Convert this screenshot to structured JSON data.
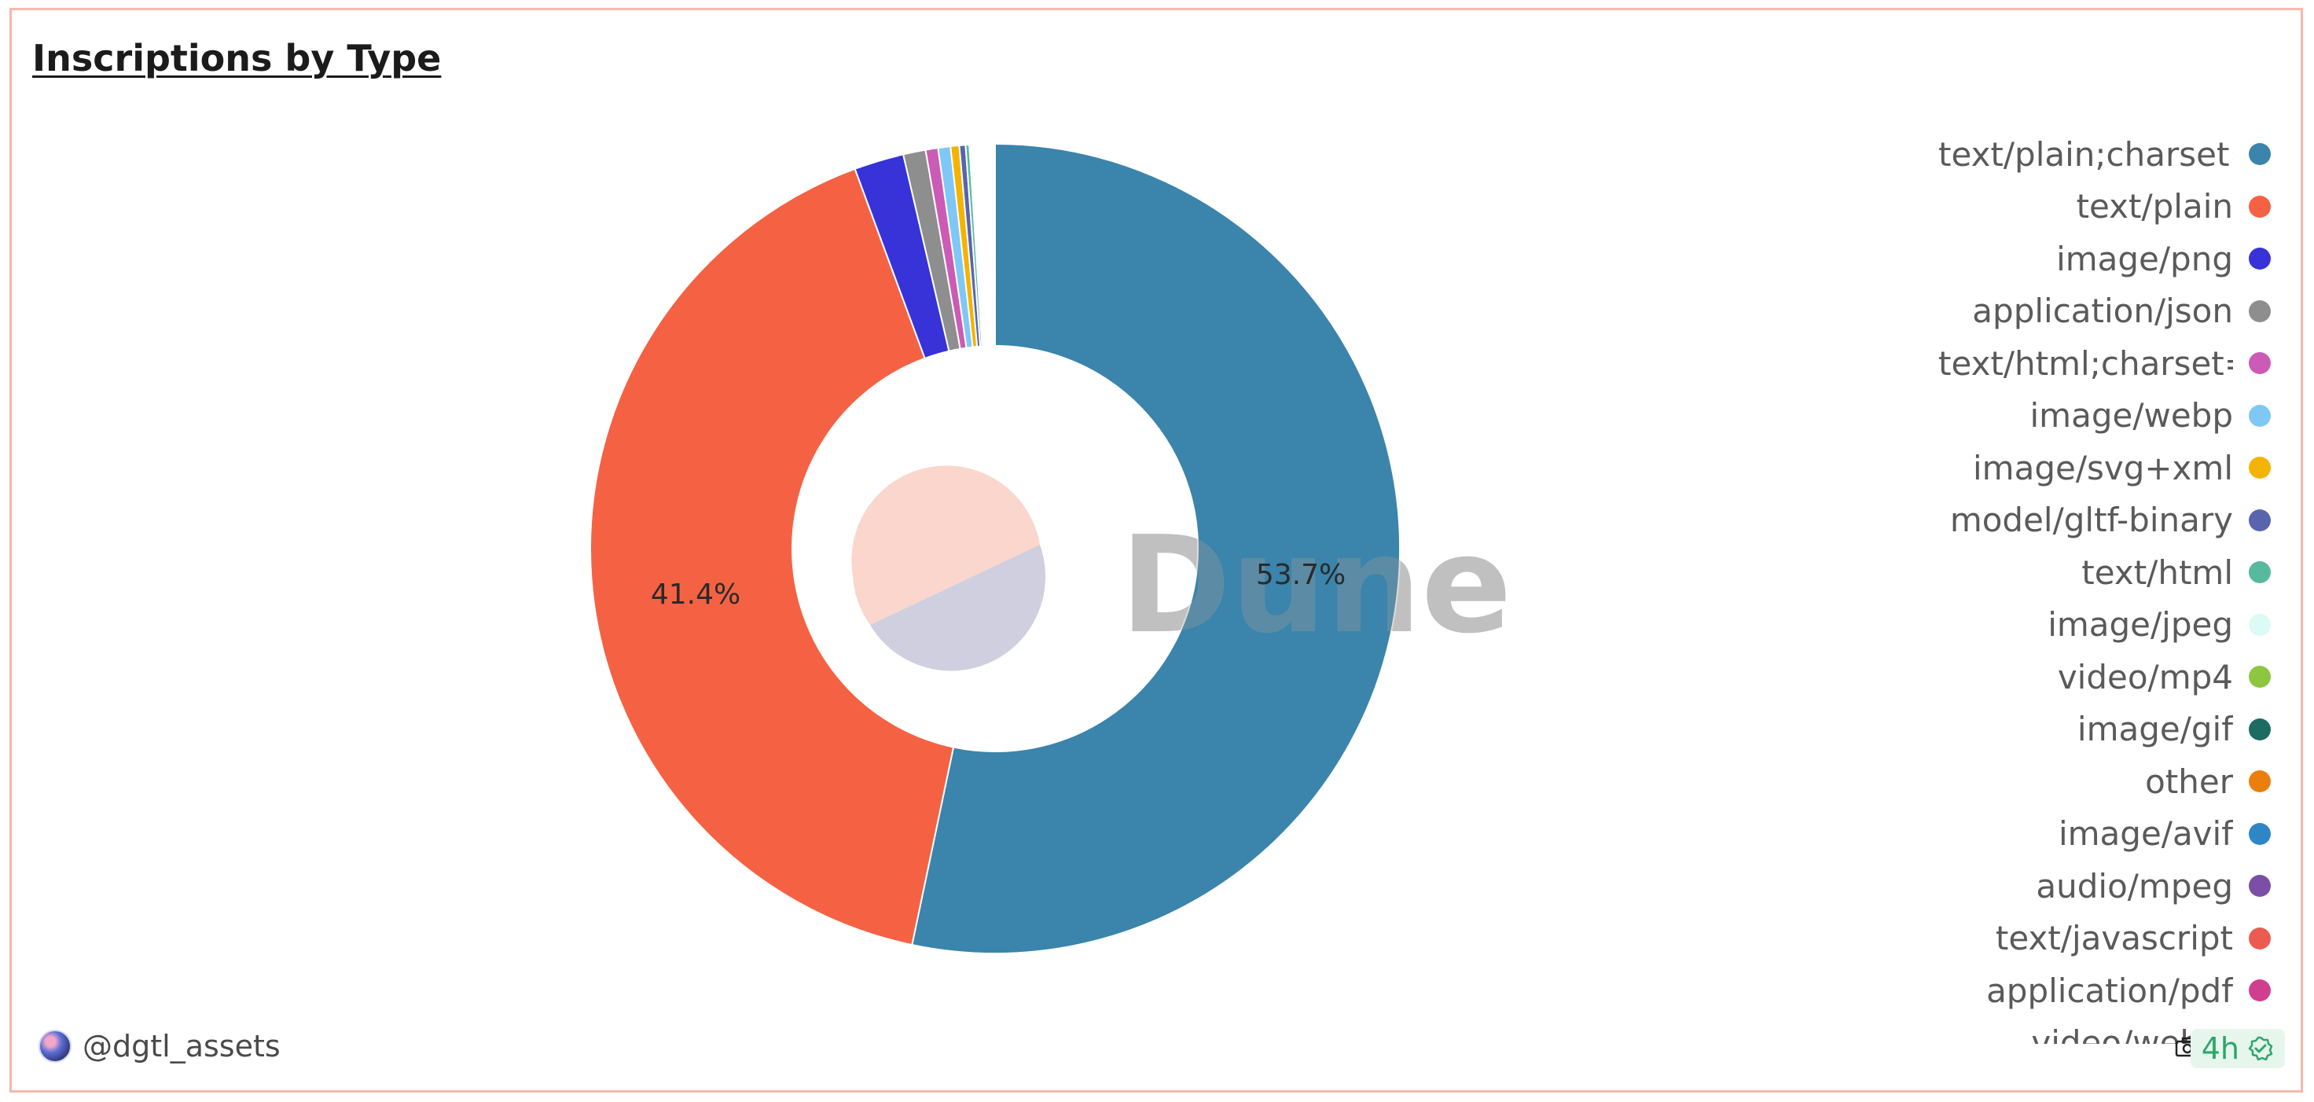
{
  "panel": {
    "title": "Inscriptions by Type",
    "watermark": "Dune",
    "username": "@dgtl_assets",
    "age": "4h",
    "icons": {
      "avatar": "user-avatar",
      "camera": "camera-icon",
      "verified": "check-circle-icon"
    }
  },
  "chart_data": {
    "type": "pie",
    "title": "Inscriptions by Type",
    "donut": true,
    "legend_position": "right",
    "slice_labels": [
      "53.7%",
      "41.4%"
    ],
    "slices": [
      {
        "name": "text/plain;charset=",
        "value": 53.7,
        "color": "#3b84ab"
      },
      {
        "name": "text/plain",
        "value": 41.4,
        "color": "#f46243"
      },
      {
        "name": "image/png",
        "value": 2.0,
        "color": "#3832d9"
      },
      {
        "name": "application/json",
        "value": 0.9,
        "color": "#8e8e8e"
      },
      {
        "name": "text/html;charset=",
        "value": 0.5,
        "color": "#cc5bb6"
      },
      {
        "name": "image/webp",
        "value": 0.5,
        "color": "#7fc8f5"
      },
      {
        "name": "image/svg+xml",
        "value": 0.35,
        "color": "#f5b301"
      },
      {
        "name": "model/gltf-binary",
        "value": 0.25,
        "color": "#5865ad"
      },
      {
        "name": "text/html",
        "value": 0.15,
        "color": "#57b99d"
      },
      {
        "name": "image/jpeg",
        "value": 0.08,
        "color": "#dcfaf6"
      },
      {
        "name": "video/mp4",
        "value": 0.06,
        "color": "#8dc63f"
      },
      {
        "name": "image/gif",
        "value": 0.05,
        "color": "#1d6b63"
      },
      {
        "name": "other",
        "value": 0.03,
        "color": "#ea7f0e"
      },
      {
        "name": "image/avif",
        "value": 0.02,
        "color": "#2f86c6"
      },
      {
        "name": "audio/mpeg",
        "value": 0.02,
        "color": "#7a4fa5"
      },
      {
        "name": "text/javascript",
        "value": 0.02,
        "color": "#ea5c52"
      },
      {
        "name": "application/pdf",
        "value": 0.01,
        "color": "#d13e90"
      },
      {
        "name": "video/webm",
        "value": 0.01,
        "color": "#9a9a9a"
      }
    ]
  }
}
